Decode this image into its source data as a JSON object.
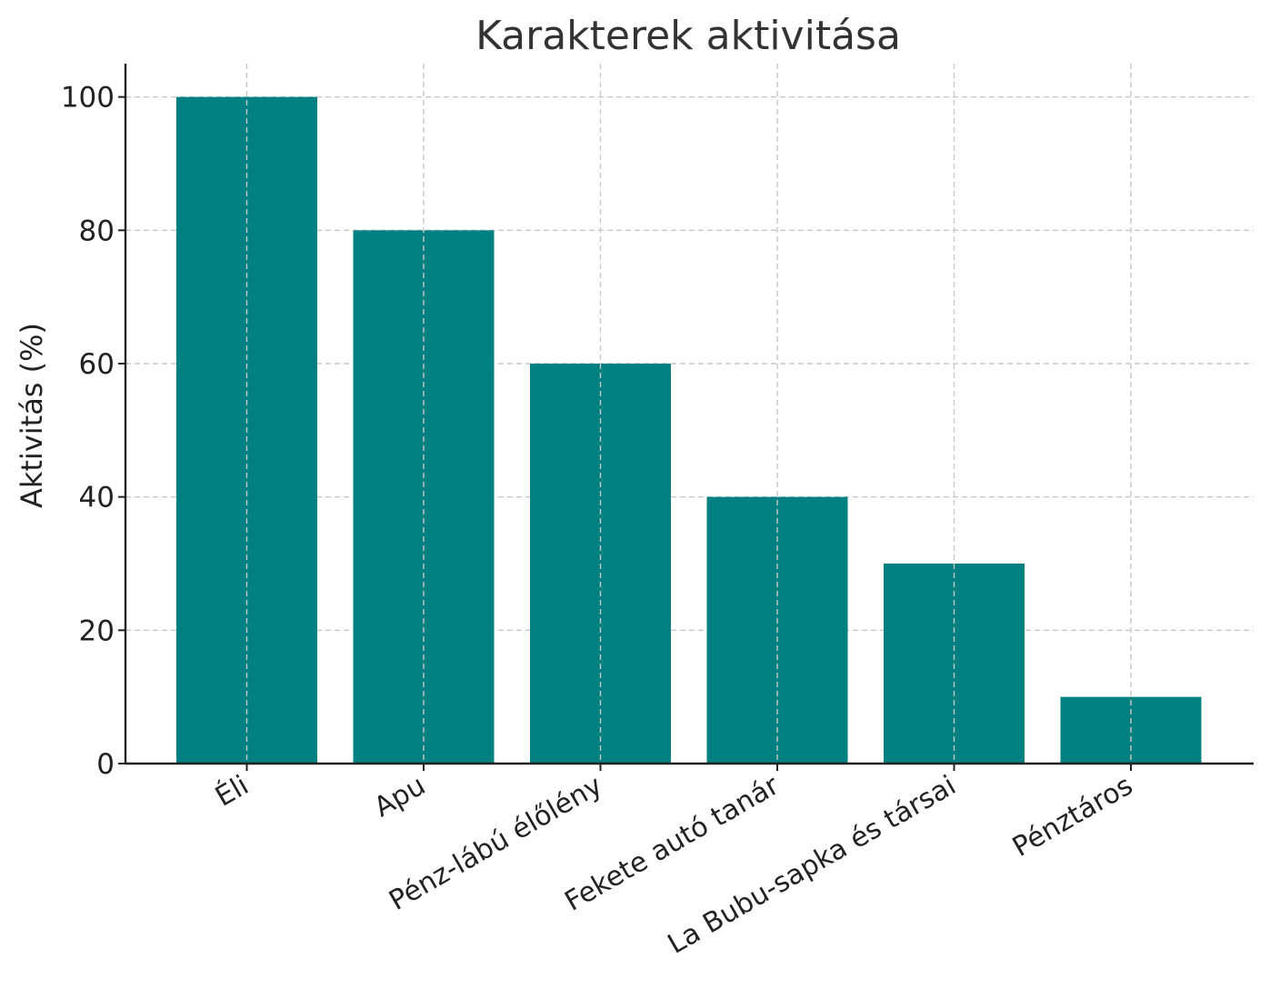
{
  "chart_data": {
    "type": "bar",
    "title": "Karakterek aktivitása",
    "xlabel": "",
    "ylabel": "Aktivitás (%)",
    "categories": [
      "Éli",
      "Apu",
      "Pénz-lábú élőlény",
      "Fekete autó tanár",
      "La Bubu-sapka és társai",
      "Pénztáros"
    ],
    "values": [
      100,
      80,
      60,
      40,
      30,
      10
    ],
    "ylim": [
      0,
      105
    ],
    "yticks": [
      0,
      20,
      40,
      60,
      80,
      100
    ],
    "grid": true,
    "bar_color": "#008080",
    "xtick_rotation": -30
  }
}
